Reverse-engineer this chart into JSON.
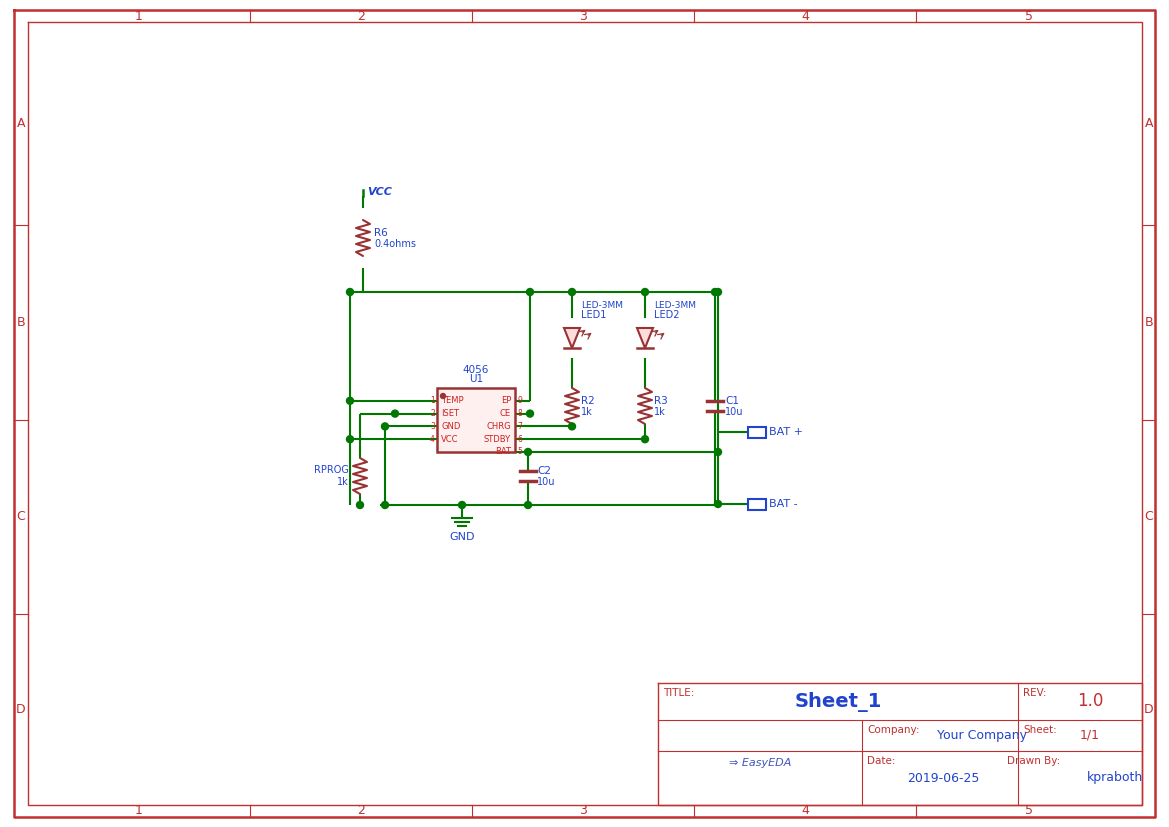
{
  "bg_color": "#ffffff",
  "border_color": "#c03030",
  "wire_color": "#007700",
  "comp_color": "#993333",
  "text_blue": "#2244cc",
  "text_red": "#cc2222",
  "title_text": "Sheet_1",
  "rev_text": "REV:",
  "rev_val": "1.0",
  "company_label": "Company:",
  "company_val": "Your Company",
  "sheet_label": "Sheet:",
  "sheet_val": "1/1",
  "date_label": "Date:",
  "date_val": "2019-06-25",
  "drawn_label": "Drawn By:",
  "drawn_val": "kpraboth",
  "col_labels": [
    "1",
    "2",
    "3",
    "4",
    "5"
  ],
  "row_labels": [
    "A",
    "B",
    "C",
    "D"
  ]
}
